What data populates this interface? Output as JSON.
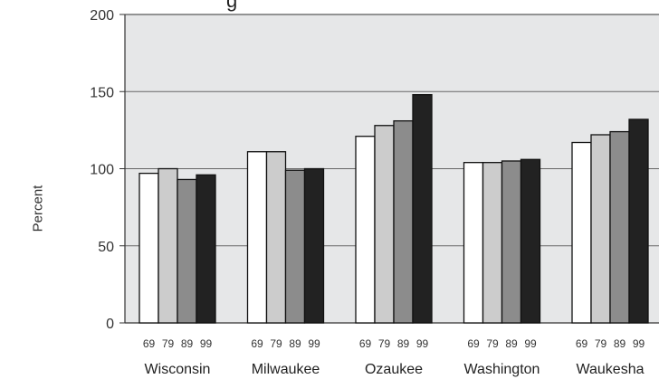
{
  "chart_data": {
    "type": "bar",
    "title": "g",
    "ylabel": "Percent",
    "xlabel": "",
    "ylim": [
      0,
      200
    ],
    "yticks": [
      "0",
      "50",
      "100",
      "150",
      "200"
    ],
    "grid": true,
    "background_color": "#e6e7e8",
    "categories": [
      "Wisconsin",
      "Milwaukee",
      "Ozaukee",
      "Washington",
      "Waukesha"
    ],
    "series": [
      {
        "name": "69",
        "color": "#ffffff",
        "values": [
          97,
          111,
          121,
          104,
          117
        ]
      },
      {
        "name": "79",
        "color": "#cccccc",
        "values": [
          100,
          111,
          128,
          104,
          122
        ]
      },
      {
        "name": "89",
        "color": "#8c8c8c",
        "values": [
          93,
          99,
          131,
          105,
          124
        ]
      },
      {
        "name": "99",
        "color": "#222222",
        "values": [
          96,
          100,
          148,
          106,
          132
        ]
      }
    ]
  }
}
